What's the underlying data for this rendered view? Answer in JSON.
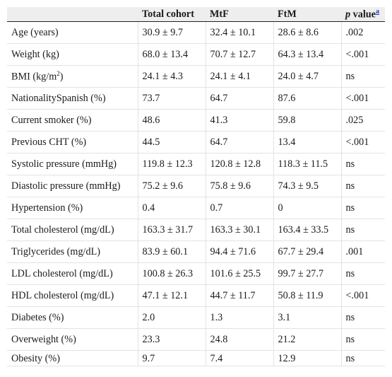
{
  "header": {
    "col_variable": "",
    "col_total": "Total cohort",
    "col_mtf": "MtF",
    "col_ftm": "FtM",
    "col_p_italic": "p",
    "col_p_rest": " value",
    "col_p_footnote": "a"
  },
  "rows": [
    {
      "label": "Age (years)",
      "total": "30.9 ± 9.7",
      "mtf": "32.4 ± 10.1",
      "ftm": "28.6 ± 8.6",
      "p": ".002"
    },
    {
      "label": "Weight (kg)",
      "total": "68.0 ± 13.4",
      "mtf": "70.7 ± 12.7",
      "ftm": "64.3 ± 13.4",
      "p": "<.001"
    },
    {
      "label_pre": "BMI (kg/m",
      "label_sup": "2",
      "label_post": ")",
      "total": "24.1 ± 4.3",
      "mtf": "24.1 ± 4.1",
      "ftm": "24.0 ± 4.7",
      "p": "ns"
    },
    {
      "label": "NationalitySpanish (%)",
      "total": "73.7",
      "mtf": "64.7",
      "ftm": "87.6",
      "p": "<.001"
    },
    {
      "label": "Current smoker (%)",
      "total": "48.6",
      "mtf": "41.3",
      "ftm": "59.8",
      "p": ".025"
    },
    {
      "label": "Previous CHT (%)",
      "total": "44.5",
      "mtf": "64.7",
      "ftm": "13.4",
      "p": "<.001"
    },
    {
      "label": "Systolic pressure (mmHg)",
      "total": "119.8 ± 12.3",
      "mtf": "120.8 ± 12.8",
      "ftm": "118.3 ± 11.5",
      "p": "ns"
    },
    {
      "label": "Diastolic pressure (mmHg)",
      "total": "75.2 ± 9.6",
      "mtf": "75.8 ± 9.6",
      "ftm": "74.3 ± 9.5",
      "p": "ns"
    },
    {
      "label": "Hypertension (%)",
      "total": "0.4",
      "mtf": "0.7",
      "ftm": "0",
      "p": "ns"
    },
    {
      "label": "Total cholesterol (mg/dL)",
      "total": "163.3 ± 31.7",
      "mtf": "163.3 ± 30.1",
      "ftm": "163.4 ± 33.5",
      "p": "ns"
    },
    {
      "label": "Triglycerides (mg/dL)",
      "total": "83.9 ± 60.1",
      "mtf": "94.4 ± 71.6",
      "ftm": "67.7 ± 29.4",
      "p": ".001"
    },
    {
      "label": "LDL cholesterol (mg/dL)",
      "total": "100.8 ± 26.3",
      "mtf": "101.6 ± 25.5",
      "ftm": "99.7 ± 27.7",
      "p": "ns"
    },
    {
      "label": "HDL cholesterol (mg/dL)",
      "total": "47.1 ± 12.1",
      "mtf": "44.7 ± 11.7",
      "ftm": "50.8 ± 11.9",
      "p": "<.001"
    },
    {
      "label": "Diabetes (%)",
      "total": "2.0",
      "mtf": "1.3",
      "ftm": "3.1",
      "p": "ns"
    },
    {
      "label": "Overweight (%)",
      "total": "23.3",
      "mtf": "24.8",
      "ftm": "21.2",
      "p": "ns"
    },
    {
      "label": "Obesity (%)",
      "total": "9.7",
      "mtf": "7.4",
      "ftm": "12.9",
      "p": "ns"
    }
  ]
}
